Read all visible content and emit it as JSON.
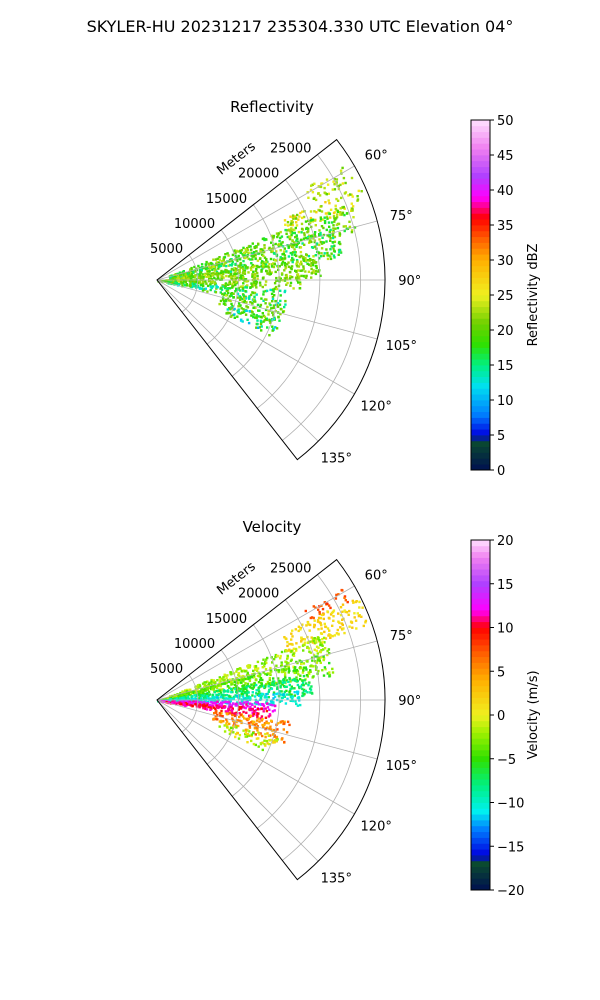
{
  "figure": {
    "title": "SKYLER-HU  20231217  235304.330 UTC Elevation 04°"
  },
  "chart_data": [
    {
      "type": "polar-sector",
      "title": "Reflectivity",
      "radial_label": "Meters",
      "radial_ticks": [
        5000,
        10000,
        15000,
        20000,
        25000
      ],
      "radial_tick_labels": [
        "5000",
        "10000",
        "15000",
        "20000",
        "25000"
      ],
      "rmax": 28000,
      "theta_range_deg": [
        52,
        142
      ],
      "theta_ticks_deg": [
        60,
        75,
        90,
        105,
        120,
        135
      ],
      "theta_tick_labels": [
        "60°",
        "75°",
        "90°",
        "105°",
        "120°",
        "135°"
      ],
      "grid": true,
      "colorbar": {
        "label": "Reflectivity dBZ",
        "range": [
          0,
          50
        ],
        "ticks": [
          0,
          5,
          10,
          15,
          20,
          25,
          30,
          35,
          40,
          45,
          50
        ],
        "tick_labels": [
          "0",
          "5",
          "10",
          "15",
          "20",
          "25",
          "30",
          "35",
          "40",
          "45",
          "50"
        ],
        "stops": [
          {
            "v": 0,
            "c": "#001050"
          },
          {
            "v": 4,
            "c": "#0a4a30"
          },
          {
            "v": 5,
            "c": "#0000e0"
          },
          {
            "v": 8,
            "c": "#0080ff"
          },
          {
            "v": 12,
            "c": "#00e0f0"
          },
          {
            "v": 15,
            "c": "#00f080"
          },
          {
            "v": 18,
            "c": "#30e000"
          },
          {
            "v": 21,
            "c": "#70d000"
          },
          {
            "v": 25,
            "c": "#f0f020"
          },
          {
            "v": 30,
            "c": "#ffb000"
          },
          {
            "v": 33,
            "c": "#ff6000"
          },
          {
            "v": 36,
            "c": "#ff0000"
          },
          {
            "v": 39,
            "c": "#ff00ff"
          },
          {
            "v": 42,
            "c": "#b040ff"
          },
          {
            "v": 46,
            "c": "#f080f0"
          },
          {
            "v": 50,
            "c": "#ffe0ff"
          }
        ]
      },
      "field": {
        "echoes": [
          {
            "az": 60.5,
            "r": [
              20500,
              27000
            ],
            "w": 2.5,
            "val": [
              20,
              26
            ],
            "density": 0.6
          },
          {
            "az": 67,
            "r": [
              17000,
              27500
            ],
            "w": 3,
            "val": [
              20,
              28
            ],
            "density": 0.65
          },
          {
            "az": 72,
            "r": [
              1500,
              25500
            ],
            "w": 4,
            "val": [
              16,
              24
            ],
            "density": 0.7
          },
          {
            "az": 78,
            "r": [
              1500,
              23000
            ],
            "w": 5,
            "val": [
              14,
              24
            ],
            "density": 0.75
          },
          {
            "az": 85,
            "r": [
              0,
              20000
            ],
            "w": 4,
            "val": [
              18,
              24
            ],
            "density": 0.8
          },
          {
            "az": 91,
            "r": [
              0,
              17500
            ],
            "w": 3,
            "val": [
              18,
              24
            ],
            "density": 0.7
          },
          {
            "az": 98,
            "r": [
              1000,
              16000
            ],
            "w": 4,
            "val": [
              12,
              22
            ],
            "density": 0.6
          },
          {
            "az": 106,
            "r": [
              8000,
              16000
            ],
            "w": 5,
            "val": [
              16,
              24
            ],
            "density": 0.55
          },
          {
            "az": 112,
            "r": [
              9000,
              16000
            ],
            "w": 4,
            "val": [
              10,
              22
            ],
            "density": 0.5
          }
        ]
      }
    },
    {
      "type": "polar-sector",
      "title": "Velocity",
      "radial_label": "Meters",
      "radial_ticks": [
        5000,
        10000,
        15000,
        20000,
        25000
      ],
      "radial_tick_labels": [
        "5000",
        "10000",
        "15000",
        "20000",
        "25000"
      ],
      "rmax": 28000,
      "theta_range_deg": [
        52,
        142
      ],
      "theta_ticks_deg": [
        60,
        75,
        90,
        105,
        120,
        135
      ],
      "theta_tick_labels": [
        "60°",
        "75°",
        "90°",
        "105°",
        "120°",
        "135°"
      ],
      "grid": true,
      "colorbar": {
        "label": "Velocity (m/s)",
        "range": [
          -20,
          20
        ],
        "ticks": [
          -20,
          -15,
          -10,
          -5,
          0,
          5,
          10,
          15,
          20
        ],
        "tick_labels": [
          "−20",
          "−15",
          "−10",
          "−5",
          "0",
          "5",
          "10",
          "15",
          "20"
        ],
        "stops": [
          {
            "v": -20,
            "c": "#001050"
          },
          {
            "v": -17,
            "c": "#0a4a30"
          },
          {
            "v": -16,
            "c": "#0000e0"
          },
          {
            "v": -13,
            "c": "#0080ff"
          },
          {
            "v": -11,
            "c": "#00f0f0"
          },
          {
            "v": -8,
            "c": "#00f080"
          },
          {
            "v": -5,
            "c": "#30e000"
          },
          {
            "v": -2,
            "c": "#a0f000"
          },
          {
            "v": 0,
            "c": "#f0f020"
          },
          {
            "v": 4,
            "c": "#ffb000"
          },
          {
            "v": 7,
            "c": "#ff6000"
          },
          {
            "v": 10,
            "c": "#ff0000"
          },
          {
            "v": 12,
            "c": "#ff00ff"
          },
          {
            "v": 15,
            "c": "#b040ff"
          },
          {
            "v": 18,
            "c": "#f080f0"
          },
          {
            "v": 20,
            "c": "#ffe0ff"
          }
        ]
      },
      "field": {
        "echoes": [
          {
            "az": 60.5,
            "r": [
              21000,
              26500
            ],
            "w": 2,
            "val": [
              6,
              9
            ],
            "density": 0.55
          },
          {
            "az": 66,
            "r": [
              17000,
              28000
            ],
            "w": 4,
            "val": [
              0,
              3
            ],
            "density": 0.7
          },
          {
            "az": 72,
            "r": [
              1500,
              22000
            ],
            "w": 4,
            "val": [
              -4,
              0
            ],
            "density": 0.75
          },
          {
            "az": 78,
            "r": [
              0,
              22000
            ],
            "w": 4,
            "val": [
              -6,
              -1
            ],
            "density": 0.8
          },
          {
            "az": 84,
            "r": [
              0,
              19000
            ],
            "w": 4,
            "val": [
              -10,
              -5
            ],
            "density": 0.85
          },
          {
            "az": 89,
            "r": [
              0,
              17500
            ],
            "w": 3,
            "val": [
              -12,
              -9
            ],
            "density": 0.85
          },
          {
            "az": 93,
            "r": [
              0,
              14500
            ],
            "w": 2.5,
            "val": [
              11,
              14
            ],
            "density": 0.8
          },
          {
            "az": 97,
            "r": [
              1000,
              14000
            ],
            "w": 3,
            "val": [
              9,
              12
            ],
            "density": 0.8
          },
          {
            "az": 104,
            "r": [
              7000,
              16500
            ],
            "w": 5,
            "val": [
              3,
              8
            ],
            "density": 0.6
          },
          {
            "az": 111,
            "r": [
              8000,
              15500
            ],
            "w": 4,
            "val": [
              -4,
              3
            ],
            "density": 0.5
          }
        ]
      }
    }
  ]
}
